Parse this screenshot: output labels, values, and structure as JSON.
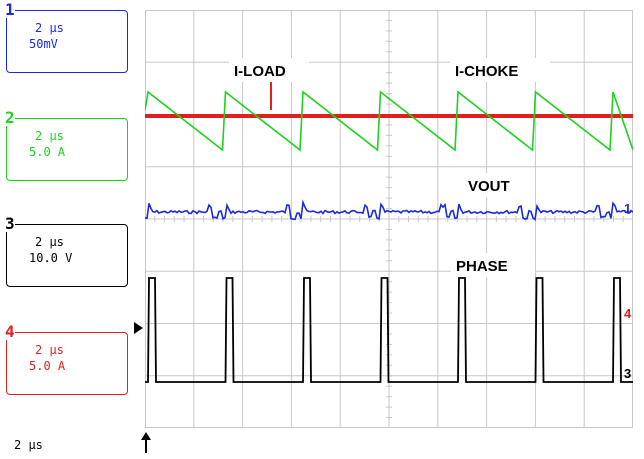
{
  "channels": [
    {
      "num": "1",
      "time": "2 μs",
      "scale": "50mV",
      "color": "#1a2bd8"
    },
    {
      "num": "2",
      "time": "2 μs",
      "scale": "5.0 A",
      "color": "#1ed21e"
    },
    {
      "num": "3",
      "time": "2 μs",
      "scale": "10.0 V",
      "color": "#000000"
    },
    {
      "num": "4",
      "time": "2 μs",
      "scale": "5.0 A",
      "color": "#e0201e"
    }
  ],
  "timebase": "2 μs",
  "trace_labels": {
    "iload": "I-LOAD",
    "ichoke": "I-CHOKE",
    "vout": "VOUT",
    "phase": "PHASE"
  },
  "markers": {
    "ch1": "1",
    "ch3": "3",
    "ch4": "4"
  },
  "grid": {
    "divisions_x": 10,
    "divisions_y": 8,
    "color": "#c8c8c8"
  }
}
